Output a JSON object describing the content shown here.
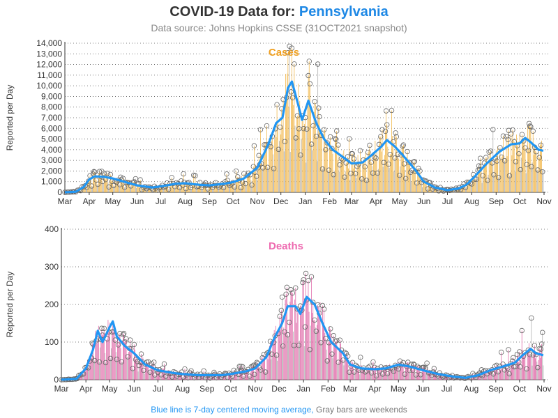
{
  "title": {
    "prefix": "COVID-19 Data for:",
    "state": "Pennsylvania"
  },
  "subtitle": "Data source: Johns Hopkins CSSE (31OCT2021 snapshot)",
  "footnote": {
    "blue": "Blue line is 7-day centered moving average,",
    "gray": "Gray bars are weekends"
  },
  "colors": {
    "title": "#333333",
    "state": "#1e88e5",
    "subtitle": "#888888",
    "avg_line": "#2196f3",
    "case_bar": "#f2b94f",
    "death_bar": "#e06aa8",
    "weekend_bar": "#b0b0b0",
    "marker_edge": "#666666",
    "cases_label": "#f0a020",
    "deaths_label": "#ee6ab0"
  },
  "chart_data": [
    {
      "type": "bar",
      "label": "Cases",
      "ylabel": "Reported per Day",
      "x_ticks": [
        "Mar",
        "Apr",
        "May",
        "Jun",
        "Jul",
        "Aug",
        "Sep",
        "Oct",
        "Nov",
        "Dec",
        "Jan",
        "Feb",
        "Mar",
        "Apr",
        "May",
        "Jun",
        "Jul",
        "Aug",
        "Sep",
        "Oct",
        "Nov"
      ],
      "ylim": [
        0,
        14000
      ],
      "y_ticks": [
        0,
        1000,
        2000,
        3000,
        4000,
        5000,
        6000,
        7000,
        8000,
        9000,
        10000,
        11000,
        12000,
        13000,
        14000
      ],
      "grid": "horizontal dotted",
      "x_range": [
        "2020-03-01",
        "2021-11-01"
      ],
      "series": [
        {
          "name": "7-day centered moving average",
          "points": [
            [
              "2020-03-01",
              0
            ],
            [
              "2020-03-15",
              50
            ],
            [
              "2020-03-25",
              500
            ],
            [
              "2020-04-01",
              1200
            ],
            [
              "2020-04-08",
              1500
            ],
            [
              "2020-04-20",
              1450
            ],
            [
              "2020-05-01",
              1300
            ],
            [
              "2020-05-15",
              1000
            ],
            [
              "2020-06-01",
              650
            ],
            [
              "2020-06-20",
              450
            ],
            [
              "2020-07-01",
              550
            ],
            [
              "2020-07-20",
              800
            ],
            [
              "2020-08-01",
              850
            ],
            [
              "2020-08-20",
              700
            ],
            [
              "2020-09-01",
              650
            ],
            [
              "2020-09-20",
              800
            ],
            [
              "2020-10-01",
              950
            ],
            [
              "2020-10-15",
              1300
            ],
            [
              "2020-11-01",
              2300
            ],
            [
              "2020-11-15",
              4500
            ],
            [
              "2020-11-25",
              6500
            ],
            [
              "2020-12-03",
              7000
            ],
            [
              "2020-12-10",
              9800
            ],
            [
              "2020-12-15",
              10400
            ],
            [
              "2020-12-22",
              8500
            ],
            [
              "2020-12-28",
              6800
            ],
            [
              "2021-01-05",
              8600
            ],
            [
              "2021-01-15",
              6500
            ],
            [
              "2021-01-25",
              5000
            ],
            [
              "2021-02-05",
              4000
            ],
            [
              "2021-02-20",
              3200
            ],
            [
              "2021-03-01",
              2700
            ],
            [
              "2021-03-15",
              2800
            ],
            [
              "2021-03-25",
              3400
            ],
            [
              "2021-04-08",
              4300
            ],
            [
              "2021-04-15",
              4900
            ],
            [
              "2021-04-25",
              4300
            ],
            [
              "2021-05-05",
              3500
            ],
            [
              "2021-05-20",
              2200
            ],
            [
              "2021-06-01",
              1000
            ],
            [
              "2021-06-15",
              450
            ],
            [
              "2021-07-01",
              200
            ],
            [
              "2021-07-15",
              350
            ],
            [
              "2021-07-25",
              700
            ],
            [
              "2021-08-05",
              1500
            ],
            [
              "2021-08-20",
              2700
            ],
            [
              "2021-09-05",
              3800
            ],
            [
              "2021-09-20",
              4500
            ],
            [
              "2021-10-01",
              4600
            ],
            [
              "2021-10-08",
              5100
            ],
            [
              "2021-10-15",
              4700
            ],
            [
              "2021-10-25",
              4000
            ],
            [
              "2021-10-31",
              3900
            ]
          ]
        }
      ]
    },
    {
      "type": "bar",
      "label": "Deaths",
      "ylabel": "Reported per Day",
      "x_ticks": [
        "Mar",
        "Apr",
        "May",
        "Jun",
        "Jul",
        "Aug",
        "Sep",
        "Oct",
        "Nov",
        "Dec",
        "Jan",
        "Feb",
        "Mar",
        "Apr",
        "May",
        "Jun",
        "Jul",
        "Aug",
        "Sep",
        "Oct",
        "Nov"
      ],
      "ylim": [
        0,
        400
      ],
      "y_ticks": [
        0,
        100,
        200,
        300,
        400
      ],
      "grid": "horizontal dotted",
      "x_range": [
        "2020-03-01",
        "2021-11-01"
      ],
      "series": [
        {
          "name": "7-day centered moving average",
          "points": [
            [
              "2020-03-01",
              0
            ],
            [
              "2020-03-20",
              2
            ],
            [
              "2020-04-01",
              30
            ],
            [
              "2020-04-10",
              80
            ],
            [
              "2020-04-16",
              130
            ],
            [
              "2020-04-22",
              100
            ],
            [
              "2020-05-01",
              140
            ],
            [
              "2020-05-05",
              155
            ],
            [
              "2020-05-10",
              115
            ],
            [
              "2020-05-20",
              90
            ],
            [
              "2020-06-01",
              70
            ],
            [
              "2020-06-15",
              40
            ],
            [
              "2020-07-01",
              25
            ],
            [
              "2020-07-20",
              18
            ],
            [
              "2020-08-01",
              15
            ],
            [
              "2020-08-20",
              12
            ],
            [
              "2020-09-01",
              12
            ],
            [
              "2020-09-20",
              12
            ],
            [
              "2020-10-01",
              15
            ],
            [
              "2020-10-20",
              22
            ],
            [
              "2020-11-01",
              30
            ],
            [
              "2020-11-15",
              60
            ],
            [
              "2020-11-25",
              110
            ],
            [
              "2020-12-05",
              150
            ],
            [
              "2020-12-12",
              195
            ],
            [
              "2020-12-22",
              195
            ],
            [
              "2020-12-28",
              175
            ],
            [
              "2021-01-05",
              220
            ],
            [
              "2021-01-15",
              200
            ],
            [
              "2021-01-25",
              150
            ],
            [
              "2021-02-05",
              100
            ],
            [
              "2021-02-20",
              70
            ],
            [
              "2021-03-01",
              40
            ],
            [
              "2021-03-15",
              30
            ],
            [
              "2021-04-01",
              28
            ],
            [
              "2021-04-15",
              30
            ],
            [
              "2021-05-01",
              40
            ],
            [
              "2021-05-15",
              35
            ],
            [
              "2021-06-01",
              25
            ],
            [
              "2021-06-20",
              15
            ],
            [
              "2021-07-10",
              8
            ],
            [
              "2021-07-25",
              5
            ],
            [
              "2021-08-10",
              12
            ],
            [
              "2021-08-25",
              25
            ],
            [
              "2021-09-10",
              35
            ],
            [
              "2021-09-25",
              45
            ],
            [
              "2021-10-05",
              65
            ],
            [
              "2021-10-15",
              82
            ],
            [
              "2021-10-22",
              70
            ],
            [
              "2021-10-31",
              65
            ]
          ]
        }
      ]
    }
  ]
}
